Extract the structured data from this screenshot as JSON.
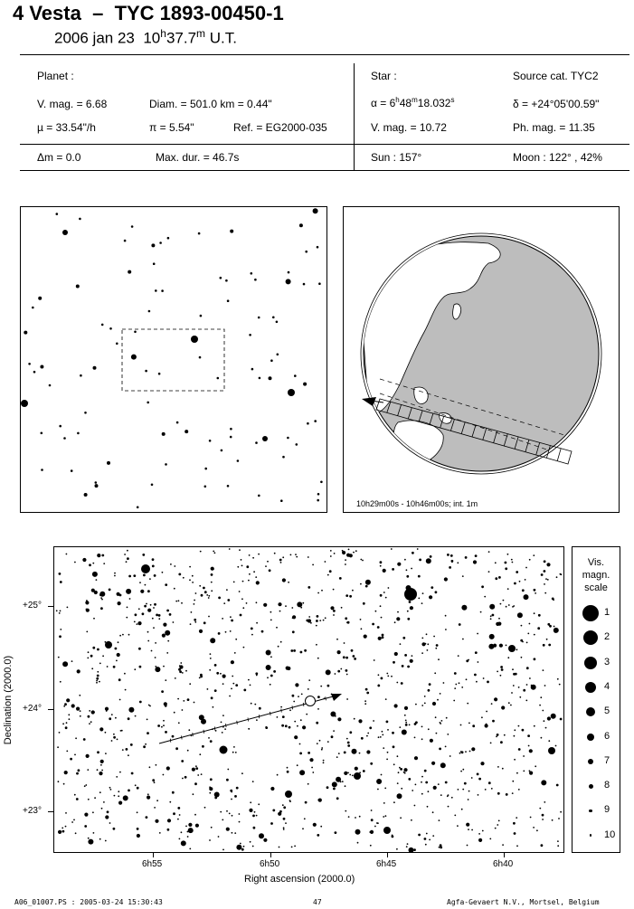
{
  "header": {
    "object": "4 Vesta",
    "dash": "–",
    "star_id": "TYC 1893-00450-1",
    "date": "2006 jan 23",
    "time_h": "10",
    "time_h_sup": "h",
    "time_m": "37.7",
    "time_m_sup": "m",
    "time_scale": "U.T."
  },
  "planet": {
    "heading": "Planet :",
    "vmag": "V. mag. = 6.68",
    "diam": "Diam. = 501.0 km = 0.44\"",
    "mu": "µ = 33.54\"/h",
    "pi": "π = 5.54\"",
    "ref": "Ref. = EG2000-035",
    "dm": "Δm = 0.0",
    "maxdur": "Max. dur. = 46.7s"
  },
  "star": {
    "heading": "Star :",
    "source": "Source cat. TYC2",
    "alpha_prefix": "α = 6",
    "alpha_h": "h",
    "alpha_mid": "48",
    "alpha_m": "m",
    "alpha_rest": "18.032",
    "alpha_s": "s",
    "delta": "δ = +24°05'00.59\"",
    "vmag": "V. mag. = 10.72",
    "phmag": "Ph. mag. = 11.35",
    "sun": "Sun : 157°",
    "moon": "Moon : 122° , 42%"
  },
  "globe": {
    "caption": "10h29m00s - 10h46m00s; int. 1m"
  },
  "chart": {
    "y_ticks": [
      "+25°",
      "+24°",
      "+23°"
    ],
    "x_ticks": [
      "6h55",
      "6h50",
      "6h45",
      "6h40"
    ],
    "ylabel": "Declination (2000.0)",
    "xlabel": "Right ascension (2000.0)"
  },
  "legend": {
    "title": [
      "Vis.",
      "magn.",
      "scale"
    ],
    "items": [
      "1",
      "2",
      "3",
      "4",
      "5",
      "6",
      "7",
      "8",
      "9",
      "10"
    ]
  },
  "footer": {
    "left": "A06_01007.PS : 2005-03-24 15:30:43",
    "center": "47",
    "right": "Agfa-Gevaert N.V., Mortsel, Belgium"
  }
}
